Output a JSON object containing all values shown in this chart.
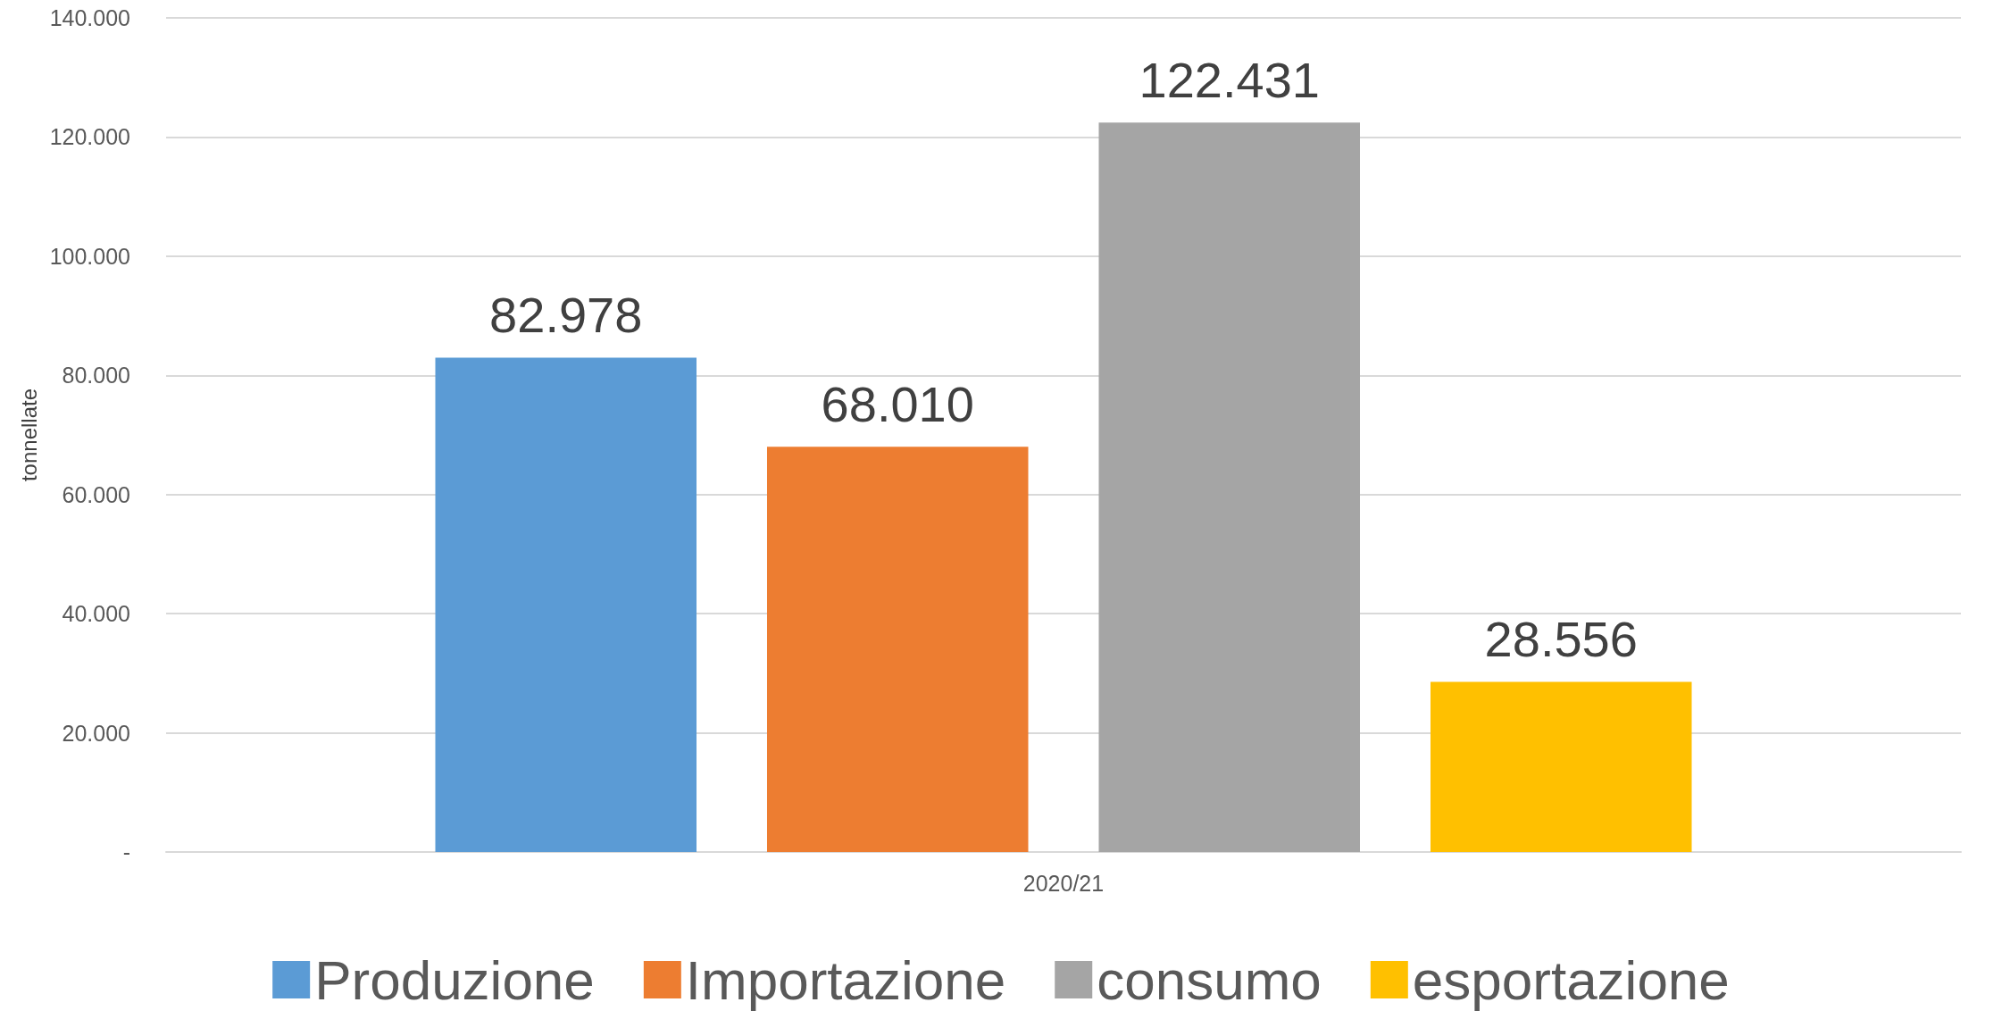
{
  "chart_data": {
    "type": "bar",
    "ylabel": "tonnellate",
    "categories": [
      "2020/21"
    ],
    "series": [
      {
        "name": "Produzione",
        "color": "#5b9bd5",
        "values": [
          82978
        ],
        "value_labels": [
          "82.978"
        ]
      },
      {
        "name": "Importazione",
        "color": "#ed7d31",
        "values": [
          68010
        ],
        "value_labels": [
          "68.010"
        ]
      },
      {
        "name": "consumo",
        "color": "#a5a5a5",
        "values": [
          122431
        ],
        "value_labels": [
          "122.431"
        ]
      },
      {
        "name": "esportazione",
        "color": "#ffc000",
        "values": [
          28556
        ],
        "value_labels": [
          "28.556"
        ]
      }
    ],
    "ylim": [
      0,
      140000
    ],
    "yticks": [
      {
        "value": 0,
        "label": "-"
      },
      {
        "value": 20000,
        "label": "20.000"
      },
      {
        "value": 40000,
        "label": "40.000"
      },
      {
        "value": 60000,
        "label": "60.000"
      },
      {
        "value": 80000,
        "label": "80.000"
      },
      {
        "value": 100000,
        "label": "100.000"
      },
      {
        "value": 120000,
        "label": "120.000"
      },
      {
        "value": 140000,
        "label": "140.000"
      }
    ],
    "grid": "y",
    "legend": "bottom"
  }
}
